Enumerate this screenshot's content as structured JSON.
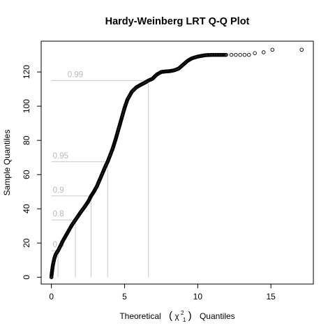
{
  "chart_data": {
    "type": "scatter",
    "title": "Hardy-Weinberg LRT Q-Q Plot",
    "xlabel": "Theoretical",
    "xlabel_symbol": "χ",
    "xlabel_sup": "2",
    "xlabel_sub": "1",
    "xlabel_suffix": "Quantiles",
    "ylabel": "Sample Quantiles",
    "xlim": [
      -0.7,
      17.9
    ],
    "ylim": [
      -4,
      138
    ],
    "x_ticks": [
      0,
      5,
      10,
      15
    ],
    "y_ticks": [
      0,
      20,
      40,
      60,
      80,
      100,
      120
    ],
    "grid": false,
    "point_color": "#000000",
    "reference_color": "#c8c8c8",
    "quantile_lines": [
      {
        "label": "0.5",
        "x": 0.45,
        "y": 15.5
      },
      {
        "label": "0.8",
        "x": 1.64,
        "y": 33.5
      },
      {
        "label": "0.9",
        "x": 2.71,
        "y": 47.5
      },
      {
        "label": "0.95",
        "x": 3.84,
        "y": 67.5
      },
      {
        "label": "0.99",
        "x": 6.63,
        "y": 115
      }
    ],
    "curve_points": [
      [
        0.0,
        0.0
      ],
      [
        0.02,
        2.0
      ],
      [
        0.05,
        4.0
      ],
      [
        0.1,
        7.0
      ],
      [
        0.2,
        11.0
      ],
      [
        0.3,
        13.5
      ],
      [
        0.45,
        15.5
      ],
      [
        0.6,
        18.0
      ],
      [
        0.8,
        21.5
      ],
      [
        1.0,
        24.5
      ],
      [
        1.2,
        27.5
      ],
      [
        1.4,
        30.5
      ],
      [
        1.64,
        33.5
      ],
      [
        1.8,
        35.5
      ],
      [
        2.0,
        38.0
      ],
      [
        2.3,
        41.5
      ],
      [
        2.5,
        44.0
      ],
      [
        2.71,
        47.5
      ],
      [
        2.9,
        50.0
      ],
      [
        3.1,
        53.0
      ],
      [
        3.3,
        57.0
      ],
      [
        3.5,
        61.0
      ],
      [
        3.7,
        65.0
      ],
      [
        3.84,
        67.5
      ],
      [
        4.0,
        71.0
      ],
      [
        4.2,
        75.5
      ],
      [
        4.4,
        81.0
      ],
      [
        4.6,
        87.0
      ],
      [
        4.8,
        93.0
      ],
      [
        5.0,
        99.0
      ],
      [
        5.2,
        104.0
      ],
      [
        5.5,
        108.5
      ],
      [
        5.8,
        111.0
      ],
      [
        6.1,
        112.5
      ],
      [
        6.4,
        113.8
      ],
      [
        6.63,
        115.0
      ],
      [
        6.9,
        116.0
      ],
      [
        7.2,
        118.5
      ],
      [
        7.5,
        120.0
      ],
      [
        7.8,
        120.3
      ],
      [
        8.1,
        120.5
      ],
      [
        8.4,
        121.0
      ],
      [
        8.7,
        122.0
      ],
      [
        8.9,
        123.5
      ],
      [
        9.1,
        125.0
      ],
      [
        9.3,
        126.5
      ],
      [
        9.6,
        128.0
      ],
      [
        10.0,
        129.0
      ],
      [
        10.5,
        129.8
      ],
      [
        11.0,
        130.0
      ],
      [
        11.5,
        130.0
      ],
      [
        12.0,
        130.0
      ]
    ],
    "tail_points": [
      [
        12.3,
        130.0
      ],
      [
        12.6,
        130.0
      ],
      [
        12.9,
        130.0
      ],
      [
        13.2,
        130.0
      ],
      [
        13.5,
        130.0
      ],
      [
        13.9,
        131.0
      ],
      [
        14.5,
        131.5
      ],
      [
        15.1,
        133.0
      ],
      [
        17.1,
        133.0
      ]
    ]
  }
}
